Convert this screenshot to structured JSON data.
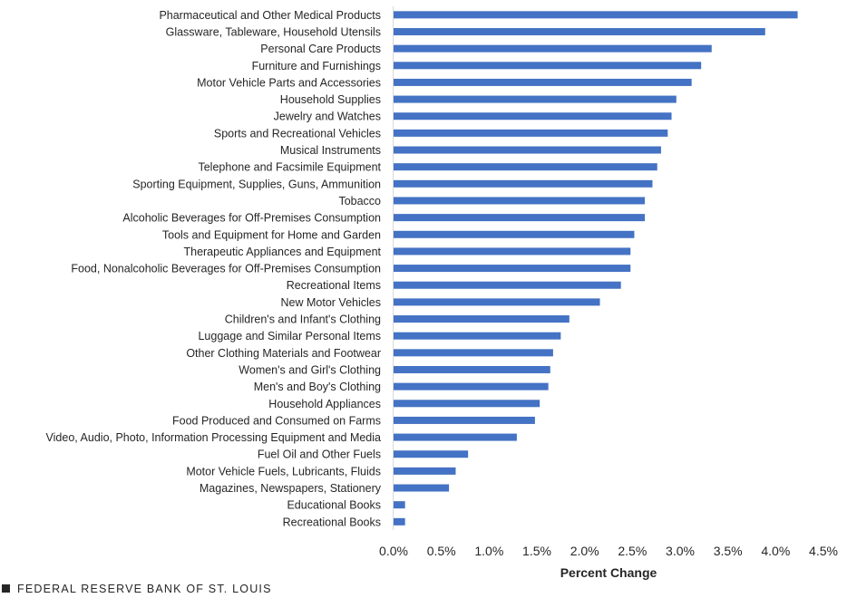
{
  "colors": {
    "bar": "#4472C4",
    "text": "#262626",
    "axis": "#d9d9d9"
  },
  "source": {
    "text": "FEDERAL RESERVE BANK OF ST. LOUIS",
    "icon": "square-icon"
  },
  "chart_data": {
    "type": "bar",
    "orientation": "horizontal",
    "xlabel": "Percent Change",
    "ylabel": "",
    "xlim": [
      0,
      4.5
    ],
    "xticks": [
      "0.0%",
      "0.5%",
      "1.0%",
      "1.5%",
      "2.0%",
      "2.5%",
      "3.0%",
      "3.5%",
      "4.0%",
      "4.5%"
    ],
    "grid": false,
    "categories": [
      "Pharmaceutical and Other Medical Products",
      "Glassware, Tableware, Household Utensils",
      "Personal Care Products",
      "Furniture and Furnishings",
      "Motor Vehicle Parts and Accessories",
      "Household Supplies",
      "Jewelry and Watches",
      "Sports and Recreational Vehicles",
      "Musical Instruments",
      "Telephone and Facsimile Equipment",
      "Sporting Equipment, Supplies, Guns, Ammunition",
      "Tobacco",
      "Alcoholic Beverages for Off-Premises Consumption",
      "Tools and Equipment for Home and Garden",
      "Therapeutic Appliances and Equipment",
      "Food, Nonalcoholic Beverages for Off-Premises Consumption",
      "Recreational Items",
      "New Motor Vehicles",
      "Children's and Infant's Clothing",
      "Luggage and Similar Personal Items",
      "Other Clothing Materials and Footwear",
      "Women's and Girl's Clothing",
      "Men's and Boy's Clothing",
      "Household Appliances",
      "Food Produced and Consumed on Farms",
      "Video, Audio, Photo, Information Processing Equipment and Media",
      "Fuel Oil and Other Fuels",
      "Motor Vehicle Fuels, Lubricants, Fluids",
      "Magazines, Newspapers, Stationery",
      "Educational Books",
      "Recreational Books"
    ],
    "values": [
      4.23,
      3.89,
      3.33,
      3.22,
      3.12,
      2.96,
      2.91,
      2.87,
      2.8,
      2.76,
      2.71,
      2.63,
      2.63,
      2.52,
      2.48,
      2.48,
      2.38,
      2.16,
      1.84,
      1.75,
      1.67,
      1.64,
      1.62,
      1.53,
      1.48,
      1.29,
      0.78,
      0.65,
      0.58,
      0.12,
      0.12
    ]
  }
}
